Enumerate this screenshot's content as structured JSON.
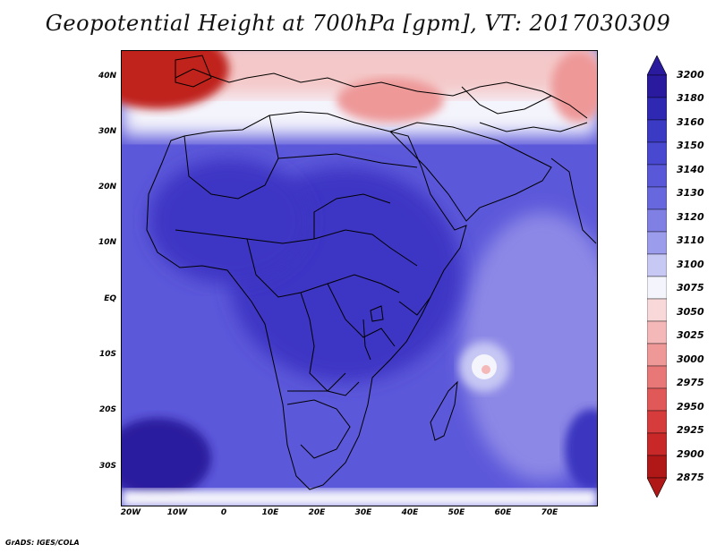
{
  "title": "Geopotential Height at 700hPa [gpm], VT: 2017030309",
  "footer": "GrADS: IGES/COLA",
  "lat_labels": [
    "40N",
    "30N",
    "20N",
    "10N",
    "EQ",
    "10S",
    "20S",
    "30S"
  ],
  "lon_labels": [
    "20W",
    "10W",
    "0",
    "10E",
    "20E",
    "30E",
    "40E",
    "50E",
    "60E",
    "70E"
  ],
  "colorbar": {
    "levels": [
      "3200",
      "3180",
      "3160",
      "3150",
      "3140",
      "3130",
      "3120",
      "3110",
      "3100",
      "3075",
      "3050",
      "3025",
      "3000",
      "2975",
      "2950",
      "2925",
      "2900",
      "2875"
    ],
    "colors": [
      "#2a1a9e",
      "#2e28b2",
      "#3a3ac4",
      "#4848d0",
      "#5858d8",
      "#6868de",
      "#8080e4",
      "#9c9cec",
      "#c8c8f4",
      "#f4f4fc",
      "#f8d8d8",
      "#f4b8b8",
      "#ee9898",
      "#e87878",
      "#e05858",
      "#d63c3c",
      "#c82828",
      "#b01818"
    ]
  },
  "colors": {
    "ocean_high": "#5a55d8",
    "land_line": "#000000",
    "warm_low": "#c0201c"
  }
}
